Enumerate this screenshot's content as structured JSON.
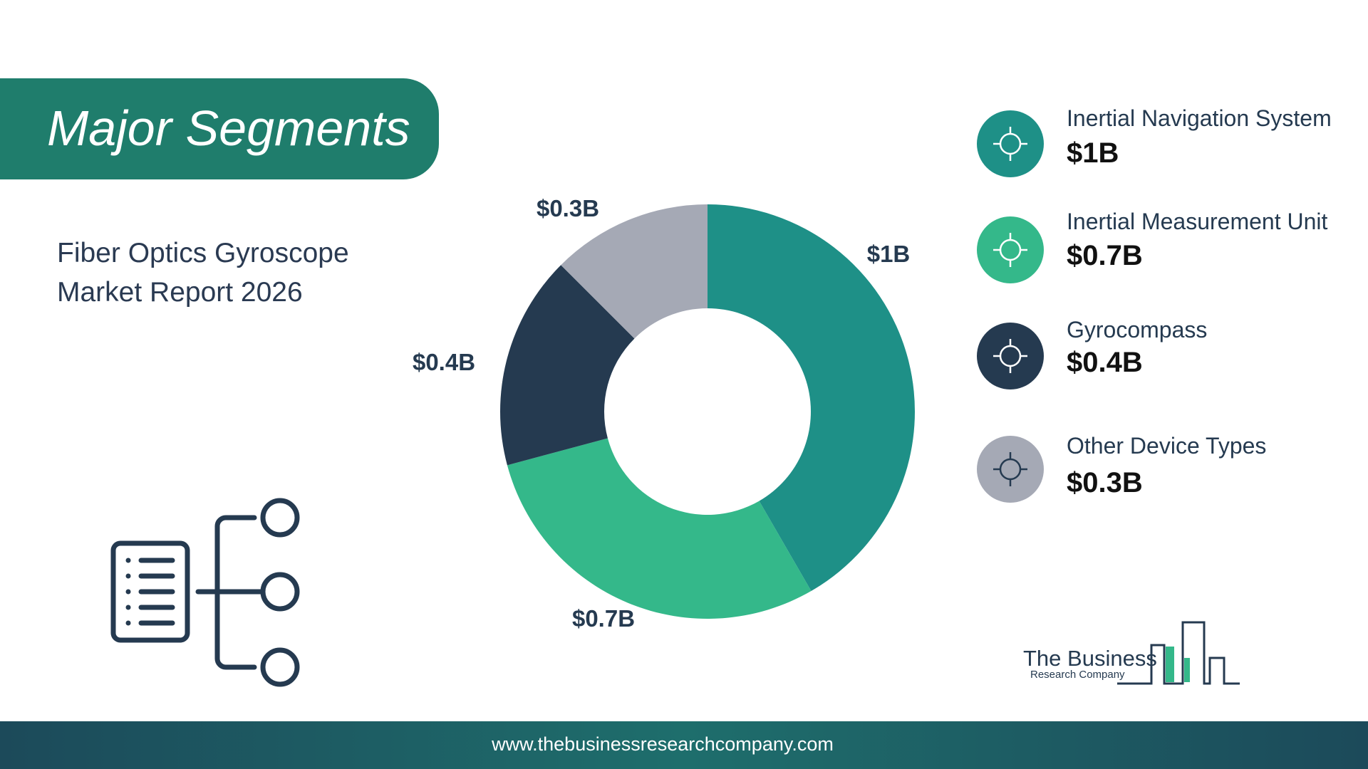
{
  "chart_data": {
    "type": "pie",
    "donut": true,
    "categories": [
      "Inertial Navigation System",
      "Inertial Measurement Unit",
      "Gyrocompass",
      "Other Device Types"
    ],
    "values": [
      1,
      0.7,
      0.4,
      0.3
    ],
    "value_labels": [
      "$1B",
      "$0.7B",
      "$0.4B",
      "$0.3B"
    ],
    "colors": [
      "#1e9087",
      "#34b88a",
      "#253a50",
      "#a5a9b5"
    ]
  },
  "header": {
    "title": "Major Segments",
    "subtitle_lines": [
      "Fiber Optics Gyroscope",
      "Market Report 2026"
    ]
  },
  "logo": {
    "line1": "The Business",
    "line2": "Research Company"
  },
  "footer": {
    "url": "www.thebusinessresearchcompany.com"
  }
}
